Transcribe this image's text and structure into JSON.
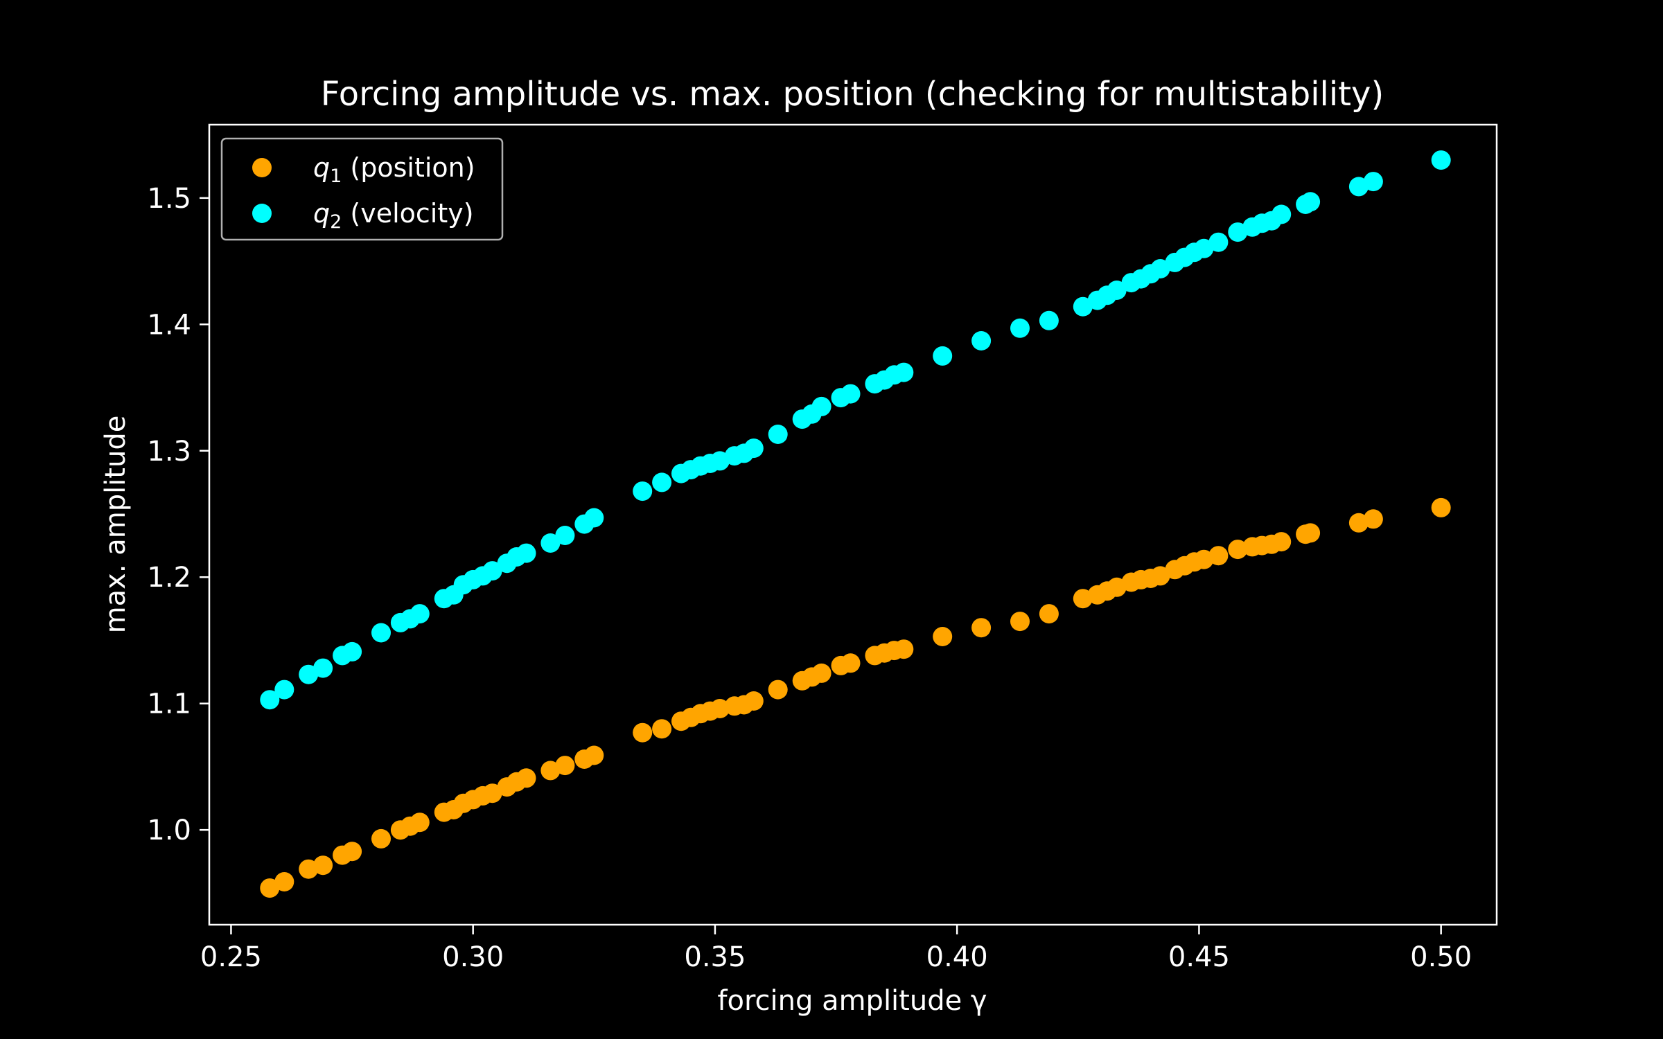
{
  "chart_data": {
    "type": "scatter",
    "title": "Forcing amplitude vs. max. position (checking for multistability)",
    "xlabel": "forcing amplitude γ",
    "ylabel": "max. amplitude",
    "xlim": [
      0.2455,
      0.5115
    ],
    "ylim": [
      0.925,
      1.558
    ],
    "xticks": [
      0.25,
      0.3,
      0.35,
      0.4,
      0.45,
      0.5
    ],
    "xtick_labels": [
      "0.25",
      "0.30",
      "0.35",
      "0.40",
      "0.45",
      "0.50"
    ],
    "yticks": [
      1.0,
      1.1,
      1.2,
      1.3,
      1.4,
      1.5
    ],
    "ytick_labels": [
      "1.0",
      "1.1",
      "1.2",
      "1.3",
      "1.4",
      "1.5"
    ],
    "grid": false,
    "legend_position": "upper-left",
    "background": "#000000",
    "foreground": "#ffffff",
    "series": [
      {
        "name": "q₁ (position)",
        "symbol": "q",
        "subscript": "1",
        "label_rest": " (position)",
        "color": "#ffa500",
        "points": [
          [
            0.258,
            0.954
          ],
          [
            0.261,
            0.959
          ],
          [
            0.266,
            0.969
          ],
          [
            0.269,
            0.972
          ],
          [
            0.273,
            0.98
          ],
          [
            0.275,
            0.983
          ],
          [
            0.281,
            0.993
          ],
          [
            0.285,
            1.0
          ],
          [
            0.287,
            1.003
          ],
          [
            0.289,
            1.006
          ],
          [
            0.294,
            1.014
          ],
          [
            0.296,
            1.016
          ],
          [
            0.298,
            1.021
          ],
          [
            0.3,
            1.024
          ],
          [
            0.302,
            1.027
          ],
          [
            0.304,
            1.029
          ],
          [
            0.307,
            1.034
          ],
          [
            0.309,
            1.038
          ],
          [
            0.311,
            1.041
          ],
          [
            0.316,
            1.047
          ],
          [
            0.319,
            1.051
          ],
          [
            0.323,
            1.056
          ],
          [
            0.325,
            1.059
          ],
          [
            0.335,
            1.077
          ],
          [
            0.339,
            1.08
          ],
          [
            0.343,
            1.086
          ],
          [
            0.345,
            1.089
          ],
          [
            0.347,
            1.092
          ],
          [
            0.349,
            1.094
          ],
          [
            0.351,
            1.096
          ],
          [
            0.354,
            1.098
          ],
          [
            0.356,
            1.099
          ],
          [
            0.358,
            1.102
          ],
          [
            0.363,
            1.111
          ],
          [
            0.368,
            1.118
          ],
          [
            0.37,
            1.121
          ],
          [
            0.372,
            1.124
          ],
          [
            0.376,
            1.13
          ],
          [
            0.378,
            1.132
          ],
          [
            0.383,
            1.138
          ],
          [
            0.385,
            1.14
          ],
          [
            0.387,
            1.142
          ],
          [
            0.389,
            1.143
          ],
          [
            0.397,
            1.153
          ],
          [
            0.405,
            1.16
          ],
          [
            0.413,
            1.165
          ],
          [
            0.419,
            1.171
          ],
          [
            0.426,
            1.183
          ],
          [
            0.429,
            1.186
          ],
          [
            0.431,
            1.189
          ],
          [
            0.433,
            1.192
          ],
          [
            0.436,
            1.196
          ],
          [
            0.438,
            1.198
          ],
          [
            0.44,
            1.199
          ],
          [
            0.442,
            1.201
          ],
          [
            0.445,
            1.206
          ],
          [
            0.447,
            1.209
          ],
          [
            0.449,
            1.212
          ],
          [
            0.451,
            1.214
          ],
          [
            0.454,
            1.217
          ],
          [
            0.458,
            1.222
          ],
          [
            0.461,
            1.224
          ],
          [
            0.463,
            1.225
          ],
          [
            0.465,
            1.226
          ],
          [
            0.467,
            1.228
          ],
          [
            0.472,
            1.234
          ],
          [
            0.473,
            1.235
          ],
          [
            0.483,
            1.243
          ],
          [
            0.486,
            1.246
          ],
          [
            0.5,
            1.255
          ]
        ]
      },
      {
        "name": "q₂ (velocity)",
        "symbol": "q",
        "subscript": "2",
        "label_rest": " (velocity)",
        "color": "#00ffff",
        "points": [
          [
            0.258,
            1.103
          ],
          [
            0.261,
            1.111
          ],
          [
            0.266,
            1.123
          ],
          [
            0.269,
            1.128
          ],
          [
            0.273,
            1.138
          ],
          [
            0.275,
            1.141
          ],
          [
            0.281,
            1.156
          ],
          [
            0.285,
            1.164
          ],
          [
            0.287,
            1.167
          ],
          [
            0.289,
            1.171
          ],
          [
            0.294,
            1.183
          ],
          [
            0.296,
            1.186
          ],
          [
            0.298,
            1.194
          ],
          [
            0.3,
            1.198
          ],
          [
            0.302,
            1.201
          ],
          [
            0.304,
            1.205
          ],
          [
            0.307,
            1.211
          ],
          [
            0.309,
            1.216
          ],
          [
            0.311,
            1.219
          ],
          [
            0.316,
            1.227
          ],
          [
            0.319,
            1.233
          ],
          [
            0.323,
            1.242
          ],
          [
            0.325,
            1.247
          ],
          [
            0.335,
            1.268
          ],
          [
            0.339,
            1.275
          ],
          [
            0.343,
            1.282
          ],
          [
            0.345,
            1.285
          ],
          [
            0.347,
            1.288
          ],
          [
            0.349,
            1.29
          ],
          [
            0.351,
            1.292
          ],
          [
            0.354,
            1.296
          ],
          [
            0.356,
            1.298
          ],
          [
            0.358,
            1.302
          ],
          [
            0.363,
            1.313
          ],
          [
            0.368,
            1.325
          ],
          [
            0.37,
            1.329
          ],
          [
            0.372,
            1.335
          ],
          [
            0.376,
            1.342
          ],
          [
            0.378,
            1.345
          ],
          [
            0.383,
            1.353
          ],
          [
            0.385,
            1.356
          ],
          [
            0.387,
            1.36
          ],
          [
            0.389,
            1.362
          ],
          [
            0.397,
            1.375
          ],
          [
            0.405,
            1.387
          ],
          [
            0.413,
            1.397
          ],
          [
            0.419,
            1.403
          ],
          [
            0.426,
            1.414
          ],
          [
            0.429,
            1.419
          ],
          [
            0.431,
            1.423
          ],
          [
            0.433,
            1.427
          ],
          [
            0.436,
            1.433
          ],
          [
            0.438,
            1.436
          ],
          [
            0.44,
            1.44
          ],
          [
            0.442,
            1.444
          ],
          [
            0.445,
            1.449
          ],
          [
            0.447,
            1.453
          ],
          [
            0.449,
            1.457
          ],
          [
            0.451,
            1.46
          ],
          [
            0.454,
            1.465
          ],
          [
            0.458,
            1.473
          ],
          [
            0.461,
            1.477
          ],
          [
            0.463,
            1.48
          ],
          [
            0.465,
            1.482
          ],
          [
            0.467,
            1.487
          ],
          [
            0.472,
            1.495
          ],
          [
            0.473,
            1.497
          ],
          [
            0.483,
            1.509
          ],
          [
            0.486,
            1.513
          ],
          [
            0.5,
            1.53
          ]
        ]
      }
    ]
  }
}
